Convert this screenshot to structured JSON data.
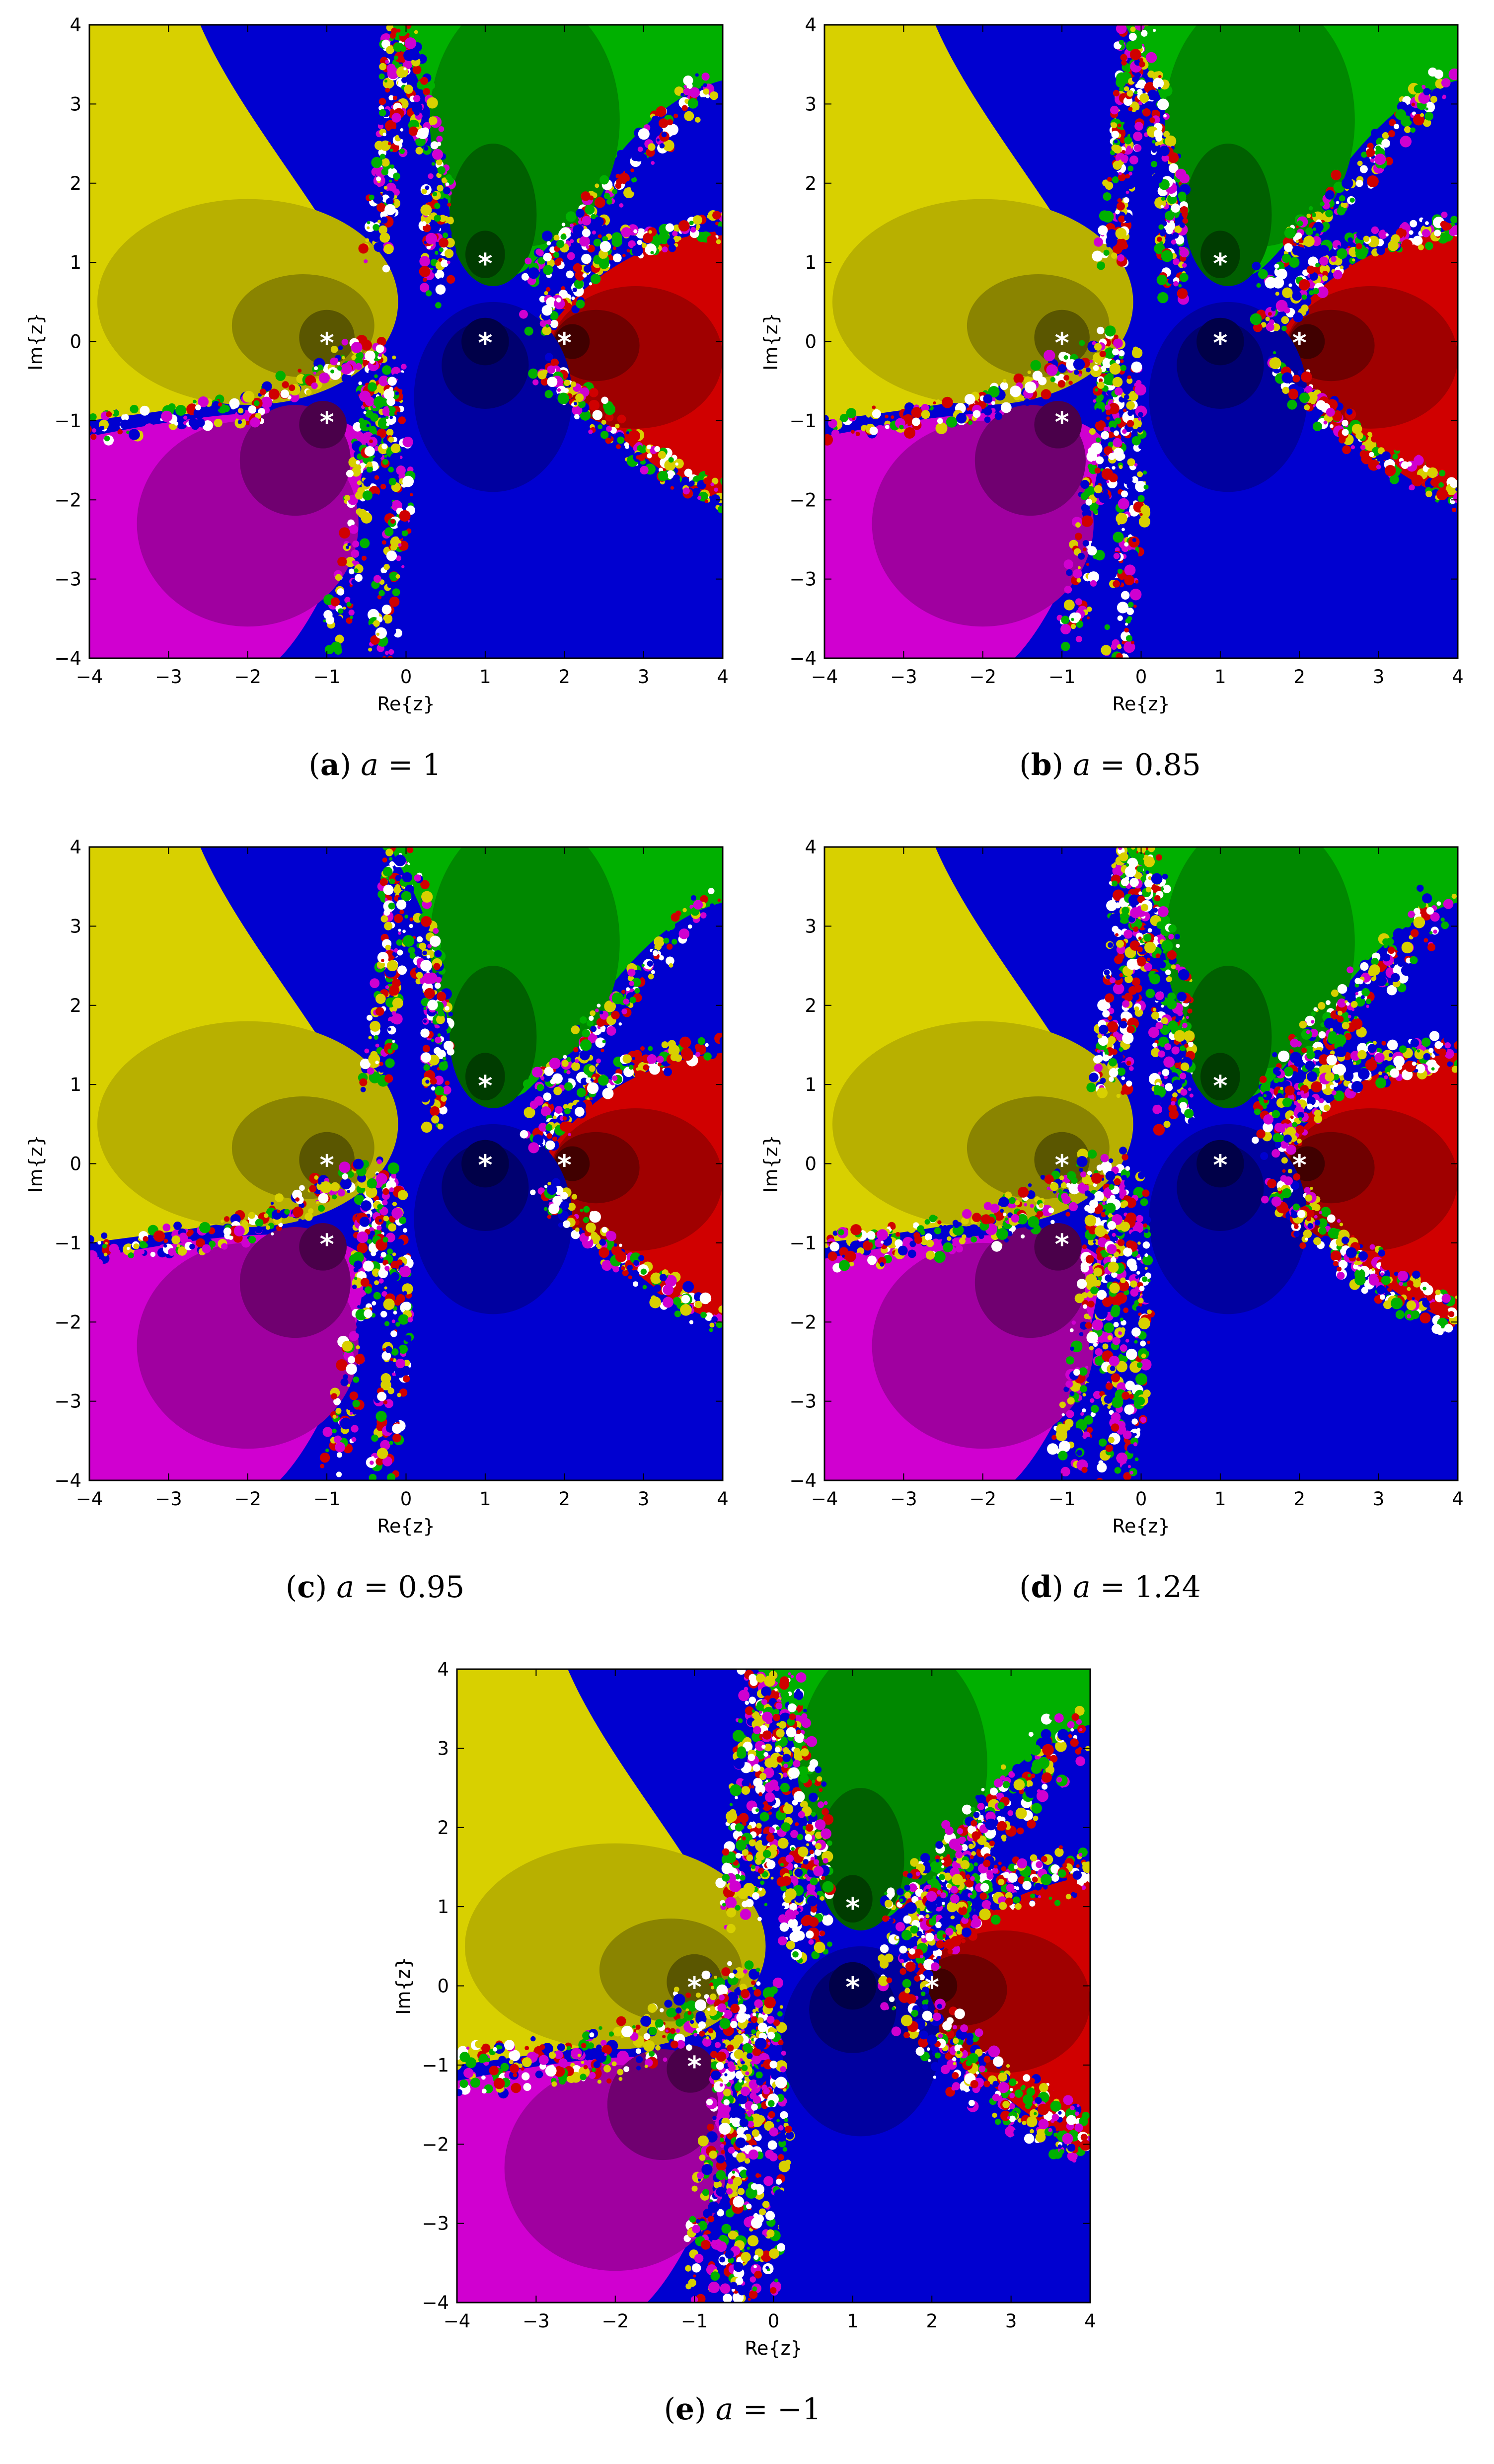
{
  "figure": {
    "panels": [
      {
        "id": "a",
        "caption": {
          "tag": "(",
          "letter": "a",
          "close": ")",
          "var": "a",
          "eq": " = ",
          "value": "1"
        },
        "chart_data": {
          "type": "heatmap",
          "title": "",
          "xlabel": "Re{z}",
          "ylabel": "Im{z}",
          "xlim": [
            -4,
            4
          ],
          "ylim": [
            -4,
            4
          ],
          "xticks": [
            "-4",
            "-3",
            "-2",
            "-1",
            "0",
            "1",
            "2",
            "3",
            "4"
          ],
          "yticks": [
            "-4",
            "-3",
            "-2",
            "-1",
            "0",
            "1",
            "2",
            "3",
            "4"
          ],
          "roots": [
            [
              1,
              1
            ],
            [
              -1,
              0
            ],
            [
              1,
              0
            ],
            [
              2,
              0
            ],
            [
              -1,
              -1
            ]
          ],
          "basin_colors": {
            "root_1_1": "#00b000",
            "root_-1_0": "#d8d000",
            "root_1_0": "#0000d0",
            "root_2_0": "#d00000",
            "root_-1_-1": "#d000d0"
          },
          "root_marker": "*",
          "parameter_a": 1
        }
      },
      {
        "id": "b",
        "caption": {
          "tag": "(",
          "letter": "b",
          "close": ")",
          "var": "a",
          "eq": " = ",
          "value": "0.85"
        },
        "chart_data": {
          "type": "heatmap",
          "title": "",
          "xlabel": "Re{z}",
          "ylabel": "Im{z}",
          "xlim": [
            -4,
            4
          ],
          "ylim": [
            -4,
            4
          ],
          "xticks": [
            "-4",
            "-3",
            "-2",
            "-1",
            "0",
            "1",
            "2",
            "3",
            "4"
          ],
          "yticks": [
            "-4",
            "-3",
            "-2",
            "-1",
            "0",
            "1",
            "2",
            "3",
            "4"
          ],
          "roots": [
            [
              1,
              1
            ],
            [
              -1,
              0
            ],
            [
              1,
              0
            ],
            [
              2,
              0
            ],
            [
              -1,
              -1
            ]
          ],
          "basin_colors": {
            "root_1_1": "#00b000",
            "root_-1_0": "#d8d000",
            "root_1_0": "#0000d0",
            "root_2_0": "#d00000",
            "root_-1_-1": "#d000d0"
          },
          "root_marker": "*",
          "parameter_a": 0.85
        }
      },
      {
        "id": "c",
        "caption": {
          "tag": "(",
          "letter": "c",
          "close": ")",
          "var": "a",
          "eq": " = ",
          "value": "0.95"
        },
        "chart_data": {
          "type": "heatmap",
          "title": "",
          "xlabel": "Re{z}",
          "ylabel": "Im{z}",
          "xlim": [
            -4,
            4
          ],
          "ylim": [
            -4,
            4
          ],
          "xticks": [
            "-4",
            "-3",
            "-2",
            "-1",
            "0",
            "1",
            "2",
            "3",
            "4"
          ],
          "yticks": [
            "-4",
            "-3",
            "-2",
            "-1",
            "0",
            "1",
            "2",
            "3",
            "4"
          ],
          "roots": [
            [
              1,
              1
            ],
            [
              -1,
              0
            ],
            [
              1,
              0
            ],
            [
              2,
              0
            ],
            [
              -1,
              -1
            ]
          ],
          "basin_colors": {
            "root_1_1": "#00b000",
            "root_-1_0": "#d8d000",
            "root_1_0": "#0000d0",
            "root_2_0": "#d00000",
            "root_-1_-1": "#d000d0"
          },
          "root_marker": "*",
          "parameter_a": 0.95
        }
      },
      {
        "id": "d",
        "caption": {
          "tag": "(",
          "letter": "d",
          "close": ")",
          "var": "a",
          "eq": " = ",
          "value": "1.24"
        },
        "chart_data": {
          "type": "heatmap",
          "title": "",
          "xlabel": "Re{z}",
          "ylabel": "Im{z}",
          "xlim": [
            -4,
            4
          ],
          "ylim": [
            -4,
            4
          ],
          "xticks": [
            "-4",
            "-3",
            "-2",
            "-1",
            "0",
            "1",
            "2",
            "3",
            "4"
          ],
          "yticks": [
            "-4",
            "-3",
            "-2",
            "-1",
            "0",
            "1",
            "2",
            "3",
            "4"
          ],
          "roots": [
            [
              1,
              1
            ],
            [
              -1,
              0
            ],
            [
              1,
              0
            ],
            [
              2,
              0
            ],
            [
              -1,
              -1
            ]
          ],
          "basin_colors": {
            "root_1_1": "#00b000",
            "root_-1_0": "#d8d000",
            "root_1_0": "#0000d0",
            "root_2_0": "#d00000",
            "root_-1_-1": "#d000d0"
          },
          "root_marker": "*",
          "parameter_a": 1.24
        }
      },
      {
        "id": "e",
        "caption": {
          "tag": "(",
          "letter": "e",
          "close": ")",
          "var": "a",
          "eq": " = ",
          "value": "−1"
        },
        "chart_data": {
          "type": "heatmap",
          "title": "",
          "xlabel": "Re{z}",
          "ylabel": "Im{z}",
          "xlim": [
            -4,
            4
          ],
          "ylim": [
            -4,
            4
          ],
          "xticks": [
            "-4",
            "-3",
            "-2",
            "-1",
            "0",
            "1",
            "2",
            "3",
            "4"
          ],
          "yticks": [
            "-4",
            "-3",
            "-2",
            "-1",
            "0",
            "1",
            "2",
            "3",
            "4"
          ],
          "roots": [
            [
              1,
              1
            ],
            [
              -1,
              0
            ],
            [
              1,
              0
            ],
            [
              2,
              0
            ],
            [
              -1,
              -1
            ]
          ],
          "basin_colors": {
            "root_1_1": "#00b000",
            "root_-1_0": "#d8d000",
            "root_1_0": "#0000d0",
            "root_2_0": "#d00000",
            "root_-1_-1": "#d000d0"
          },
          "root_marker": "*",
          "parameter_a": -1
        }
      }
    ]
  }
}
